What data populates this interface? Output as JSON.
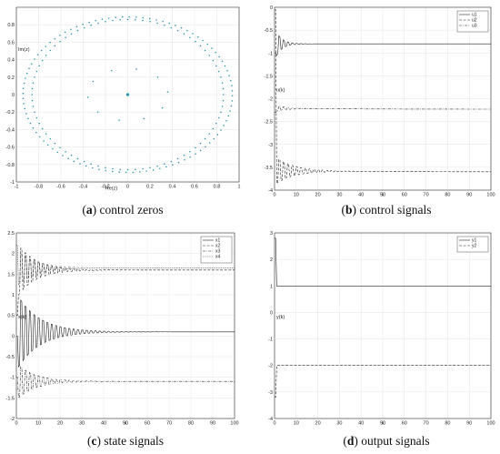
{
  "chart_data": [
    {
      "id": "a",
      "type": "scatter",
      "caption_label": "(a)",
      "caption_text": "control zeros",
      "xlabel": "Re(z)",
      "ylabel": "Im(z)",
      "xlim": [
        -1,
        1
      ],
      "ylim": [
        -1,
        1
      ],
      "xticks": [
        -1,
        -0.8,
        -0.6,
        -0.4,
        -0.2,
        0,
        0.2,
        0.4,
        0.6,
        0.8,
        1
      ],
      "yticks": [
        -1,
        -0.8,
        -0.6,
        -0.4,
        -0.2,
        0,
        0.2,
        0.4,
        0.6,
        0.8
      ],
      "grid": true,
      "rings": [
        {
          "cx": 0.0,
          "cy": 0.0,
          "rx": 0.86,
          "ry": 0.86,
          "n": 80
        },
        {
          "cx": 0.0,
          "cy": 0.0,
          "rx": 0.94,
          "ry": 0.89,
          "n": 96
        },
        {
          "cx": 0.0,
          "cy": 0.0,
          "rx": 0.36,
          "ry": 0.3,
          "n": 10
        }
      ],
      "points": [
        {
          "x": 0,
          "y": 0
        }
      ]
    },
    {
      "id": "b",
      "type": "line",
      "caption_label": "(b)",
      "caption_text": "control signals",
      "xlabel": "k",
      "ylabel": "u(k)",
      "xlim": [
        0,
        100
      ],
      "ylim": [
        -4,
        0
      ],
      "xticks": [
        0,
        10,
        20,
        30,
        40,
        50,
        60,
        70,
        80,
        90,
        100
      ],
      "yticks": [
        -4,
        -3.5,
        -3,
        -2.5,
        -2,
        -1.5,
        -1,
        -0.5,
        0
      ],
      "grid": true,
      "legend_position": "top-right",
      "legend": [
        "u1",
        "u2",
        "u3"
      ],
      "series": [
        {
          "name": "u1",
          "style": "solid",
          "final": -0.8,
          "start": -1.0,
          "amp": 0.25,
          "decay": 0.35,
          "final_drift": 0
        },
        {
          "name": "u2",
          "style": "dashed",
          "final": -3.6,
          "start": -0.05,
          "amp": 0.28,
          "decay": 0.12,
          "final_drift": 0.03
        },
        {
          "name": "u3",
          "style": "dashdot",
          "final": -2.23,
          "start": -2.3,
          "amp": 0.06,
          "decay": 0.2,
          "final_drift": 0.02
        }
      ]
    },
    {
      "id": "c",
      "type": "line",
      "caption_label": "(c)",
      "caption_text": "state signals",
      "xlabel": "k",
      "ylabel": "x(k)",
      "xlim": [
        0,
        100
      ],
      "ylim": [
        -2,
        2.5
      ],
      "xticks": [
        0,
        10,
        20,
        30,
        40,
        50,
        60,
        70,
        80,
        90,
        100
      ],
      "yticks": [
        -2,
        -1.5,
        -1,
        -0.5,
        0,
        0.5,
        1,
        1.5,
        2,
        2.5
      ],
      "grid": true,
      "legend_position": "top-right",
      "legend": [
        "x1",
        "x2",
        "x3",
        "x4"
      ],
      "series": [
        {
          "name": "x1",
          "style": "solid",
          "final": 0.1,
          "start": 0.0,
          "amp": 0.85,
          "decay": 0.1,
          "final_drift": 0
        },
        {
          "name": "x2",
          "style": "dashed",
          "final": 1.6,
          "start": 0.5,
          "amp": 0.6,
          "decay": 0.12,
          "final_drift": 0
        },
        {
          "name": "x3",
          "style": "dashdot",
          "final": -1.1,
          "start": -1.0,
          "amp": 0.4,
          "decay": 0.12,
          "final_drift": 0
        },
        {
          "name": "x4",
          "style": "dotted",
          "final": 1.65,
          "start": 2.2,
          "amp": 0.4,
          "decay": 0.12,
          "final_drift": 0
        }
      ]
    },
    {
      "id": "d",
      "type": "line",
      "caption_label": "(d)",
      "caption_text": "output signals",
      "xlabel": "k",
      "ylabel": "y(k)",
      "xlim": [
        0,
        100
      ],
      "ylim": [
        -4,
        3
      ],
      "xticks": [
        0,
        10,
        20,
        30,
        40,
        50,
        60,
        70,
        80,
        90,
        100
      ],
      "yticks": [
        -4,
        -3,
        -2,
        -1,
        0,
        1,
        2,
        3
      ],
      "grid": true,
      "legend_position": "top-right",
      "legend": [
        "y1",
        "y2"
      ],
      "series": [
        {
          "name": "y1",
          "style": "solid",
          "final": 1.0,
          "start": 2.8,
          "amp": 0,
          "decay": 1,
          "final_drift": 0
        },
        {
          "name": "y2",
          "style": "dashed",
          "final": -2.0,
          "start": -3.2,
          "amp": 0,
          "decay": 1,
          "final_drift": 0
        }
      ]
    }
  ]
}
